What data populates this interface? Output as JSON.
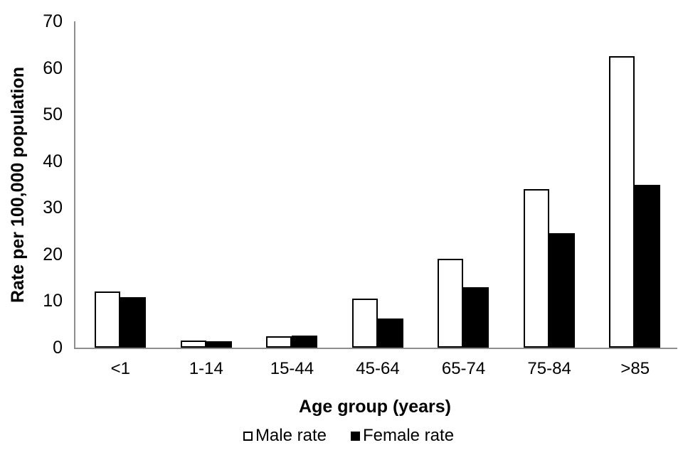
{
  "chart_data": {
    "type": "bar",
    "title": "",
    "xlabel": "Age group (years)",
    "ylabel": "Rate per 100,000 population",
    "categories": [
      "<1",
      "1-14",
      "15-44",
      "45-64",
      "65-74",
      "75-84",
      ">85"
    ],
    "series": [
      {
        "name": "Male rate",
        "fill": "#ffffff",
        "border": "#000000",
        "values": [
          12,
          1.5,
          2.5,
          10.5,
          19,
          34,
          62.5
        ]
      },
      {
        "name": "Female rate",
        "fill": "#000000",
        "border": "#000000",
        "values": [
          10.8,
          1.3,
          2.6,
          6.2,
          13,
          24.5,
          35
        ]
      }
    ],
    "ylim": [
      0,
      70
    ],
    "ytick_step": 10,
    "yticks": [
      0,
      10,
      20,
      30,
      40,
      50,
      60,
      70
    ],
    "grid": false,
    "legend_position": "bottom",
    "axis_color": "#8e8e8e",
    "text_color": "#000000",
    "background": "#ffffff"
  }
}
